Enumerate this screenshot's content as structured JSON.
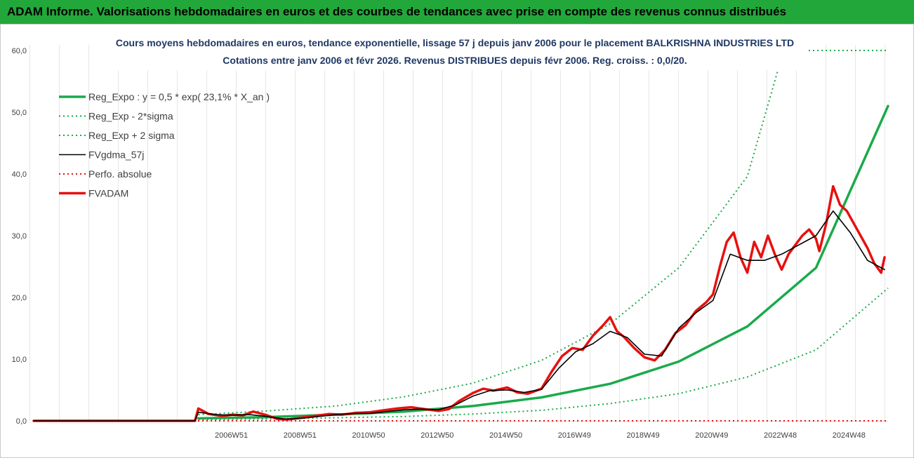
{
  "header": {
    "banner": "ADAM Informe. Valorisations hebdomadaires en euros et des courbes de tendances avec prise en compte des revenus connus distribués"
  },
  "chart_data": {
    "type": "line",
    "title_line1": "Cours moyens hebdomadaires en euros, tendance exponentielle, lissage 57 j depuis janv 2006 pour le placement BALKRISHNA INDUSTRIES LTD",
    "title_line2": "Cotations entre janv 2006 et févr 2026. Revenus DISTRIBUES depuis févr 2006. Reg. croiss. : 0,0/20.",
    "ylim": [
      0,
      60
    ],
    "yticks": [
      "0,0",
      "10,0",
      "20,0",
      "30,0",
      "40,0",
      "50,0",
      "60,0"
    ],
    "xlim": [
      2001.2,
      2026.1
    ],
    "xticks": [
      {
        "label": "2006W51",
        "x": 2006.96
      },
      {
        "label": "2008W51",
        "x": 2008.96
      },
      {
        "label": "2010W50",
        "x": 2010.96
      },
      {
        "label": "2012W50",
        "x": 2012.96
      },
      {
        "label": "2014W50",
        "x": 2014.96
      },
      {
        "label": "2016W49",
        "x": 2016.96
      },
      {
        "label": "2018W49",
        "x": 2018.96
      },
      {
        "label": "2020W49",
        "x": 2020.96
      },
      {
        "label": "2022W48",
        "x": 2022.96
      },
      {
        "label": "2024W48",
        "x": 2024.96
      }
    ],
    "grid": "vertical",
    "legend_position": "top-left",
    "series": [
      {
        "name": "Reg_Expo : y = 0,5 * exp( 23,1% *  X_an )",
        "color": "#1aaa4a",
        "style": "solid-thick",
        "x": [
          2006.0,
          2008.0,
          2010.0,
          2012.0,
          2014.0,
          2016.0,
          2018.0,
          2020.0,
          2022.0,
          2024.0,
          2026.1
        ],
        "y": [
          0.4,
          0.6,
          1.0,
          1.5,
          2.4,
          3.8,
          6.0,
          9.6,
          15.3,
          24.8,
          51.0
        ]
      },
      {
        "name": "Reg_Exp - 2*sigma",
        "color": "#1aaa4a",
        "style": "dotted",
        "x": [
          2006.0,
          2008.0,
          2010.0,
          2012.0,
          2014.0,
          2016.0,
          2018.0,
          2020.0,
          2022.0,
          2024.0,
          2026.1
        ],
        "y": [
          0.2,
          0.3,
          0.5,
          0.7,
          1.1,
          1.7,
          2.8,
          4.4,
          7.1,
          11.5,
          21.5
        ]
      },
      {
        "name": "Reg_Exp + 2 sigma",
        "color": "#1aaa4a",
        "style": "dotted",
        "x": [
          2006.0,
          2008.0,
          2010.0,
          2012.0,
          2014.0,
          2016.0,
          2018.0,
          2020.0,
          2022.0,
          2022.9
        ],
        "y": [
          1.0,
          1.6,
          2.4,
          3.9,
          6.1,
          9.8,
          15.7,
          24.8,
          39.6,
          57.0
        ]
      },
      {
        "name": "FVgdma_57j",
        "color": "#000000",
        "style": "solid",
        "x": [
          2001.2,
          2005.9,
          2006.0,
          2006.5,
          2007.0,
          2007.5,
          2008.0,
          2008.5,
          2009.0,
          2009.5,
          2010.0,
          2010.5,
          2011.0,
          2011.5,
          2012.0,
          2012.5,
          2013.0,
          2013.5,
          2014.0,
          2014.5,
          2015.0,
          2015.5,
          2016.0,
          2016.5,
          2017.0,
          2017.5,
          2018.0,
          2018.5,
          2019.0,
          2019.5,
          2020.0,
          2020.5,
          2021.0,
          2021.5,
          2022.0,
          2022.5,
          2023.0,
          2023.5,
          2024.0,
          2024.5,
          2025.0,
          2025.5,
          2026.0
        ],
        "y": [
          0,
          0,
          1.4,
          1.0,
          0.9,
          1.0,
          0.7,
          0.3,
          0.4,
          0.7,
          1.0,
          1.2,
          1.2,
          1.5,
          1.8,
          1.9,
          1.8,
          2.6,
          4.0,
          4.9,
          5.0,
          4.6,
          5.1,
          8.5,
          11.2,
          12.5,
          14.5,
          13.5,
          10.8,
          10.5,
          15.0,
          17.5,
          19.5,
          27.0,
          26.0,
          26.0,
          27.0,
          28.5,
          30.0,
          34.0,
          30.5,
          26.0,
          24.5
        ]
      },
      {
        "name": "Perfo. absolue",
        "color": "#e81010",
        "style": "dotted",
        "x": [
          2001.2,
          2026.1
        ],
        "y": [
          0,
          0
        ]
      },
      {
        "name": "FVADAM",
        "color": "#e81010",
        "style": "solid-thick",
        "x": [
          2001.2,
          2005.9,
          2006.0,
          2006.3,
          2006.7,
          2007.0,
          2007.3,
          2007.6,
          2008.0,
          2008.3,
          2008.6,
          2009.0,
          2009.4,
          2009.8,
          2010.2,
          2010.6,
          2011.0,
          2011.4,
          2011.8,
          2012.2,
          2012.6,
          2013.0,
          2013.3,
          2013.6,
          2014.0,
          2014.3,
          2014.6,
          2015.0,
          2015.3,
          2015.6,
          2016.0,
          2016.3,
          2016.6,
          2016.9,
          2017.2,
          2017.5,
          2017.8,
          2018.0,
          2018.2,
          2018.4,
          2018.7,
          2019.0,
          2019.3,
          2019.6,
          2019.9,
          2020.2,
          2020.5,
          2020.8,
          2021.0,
          2021.2,
          2021.4,
          2021.6,
          2021.8,
          2022.0,
          2022.2,
          2022.4,
          2022.6,
          2022.8,
          2023.0,
          2023.2,
          2023.4,
          2023.6,
          2023.8,
          2024.0,
          2024.1,
          2024.3,
          2024.5,
          2024.7,
          2024.9,
          2025.1,
          2025.3,
          2025.5,
          2025.7,
          2025.9,
          2026.0
        ],
        "y": [
          0,
          0,
          2.0,
          1.1,
          0.8,
          1.0,
          0.9,
          1.5,
          0.9,
          0.3,
          0.2,
          0.5,
          0.8,
          1.1,
          1.0,
          1.3,
          1.4,
          1.7,
          2.0,
          2.2,
          1.9,
          1.6,
          1.9,
          3.2,
          4.5,
          5.2,
          4.9,
          5.4,
          4.6,
          4.4,
          5.2,
          8.0,
          10.5,
          11.8,
          11.5,
          13.8,
          15.5,
          16.8,
          14.5,
          13.6,
          11.8,
          10.3,
          9.8,
          11.5,
          14.2,
          15.5,
          17.8,
          19.2,
          20.5,
          25.0,
          29.0,
          30.5,
          26.5,
          24.0,
          29.0,
          26.5,
          30.0,
          27.0,
          24.5,
          27.0,
          28.5,
          30.0,
          31.0,
          29.5,
          27.5,
          32.0,
          38.0,
          35.0,
          34.0,
          32.0,
          30.0,
          28.0,
          25.5,
          24.0,
          26.5
        ]
      }
    ]
  }
}
